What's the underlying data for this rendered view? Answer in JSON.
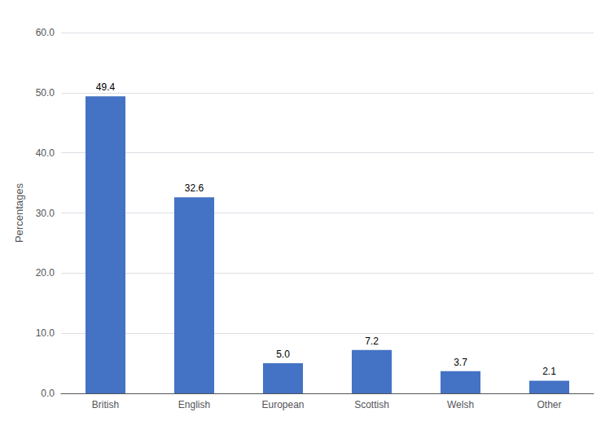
{
  "chart_data": {
    "type": "bar",
    "ylabel": "Percentages",
    "categories": [
      "British",
      "English",
      "European",
      "Scottish",
      "Welsh",
      "Other"
    ],
    "values": [
      49.4,
      32.6,
      5.0,
      7.2,
      3.7,
      2.1
    ],
    "value_labels": [
      "49.4",
      "32.6",
      "5.0",
      "7.2",
      "3.7",
      "2.1"
    ],
    "data_labels": true,
    "color": "#4472C4",
    "ylim": [
      0,
      60
    ],
    "yticks": [
      {
        "value": 0,
        "label": "0.0"
      },
      {
        "value": 10,
        "label": "10.0"
      },
      {
        "value": 20,
        "label": "20.0"
      },
      {
        "value": 30,
        "label": "30.0"
      },
      {
        "value": 40,
        "label": "40.0"
      },
      {
        "value": 50,
        "label": "50.0"
      },
      {
        "value": 60,
        "label": "60.0"
      }
    ],
    "grid": true
  }
}
